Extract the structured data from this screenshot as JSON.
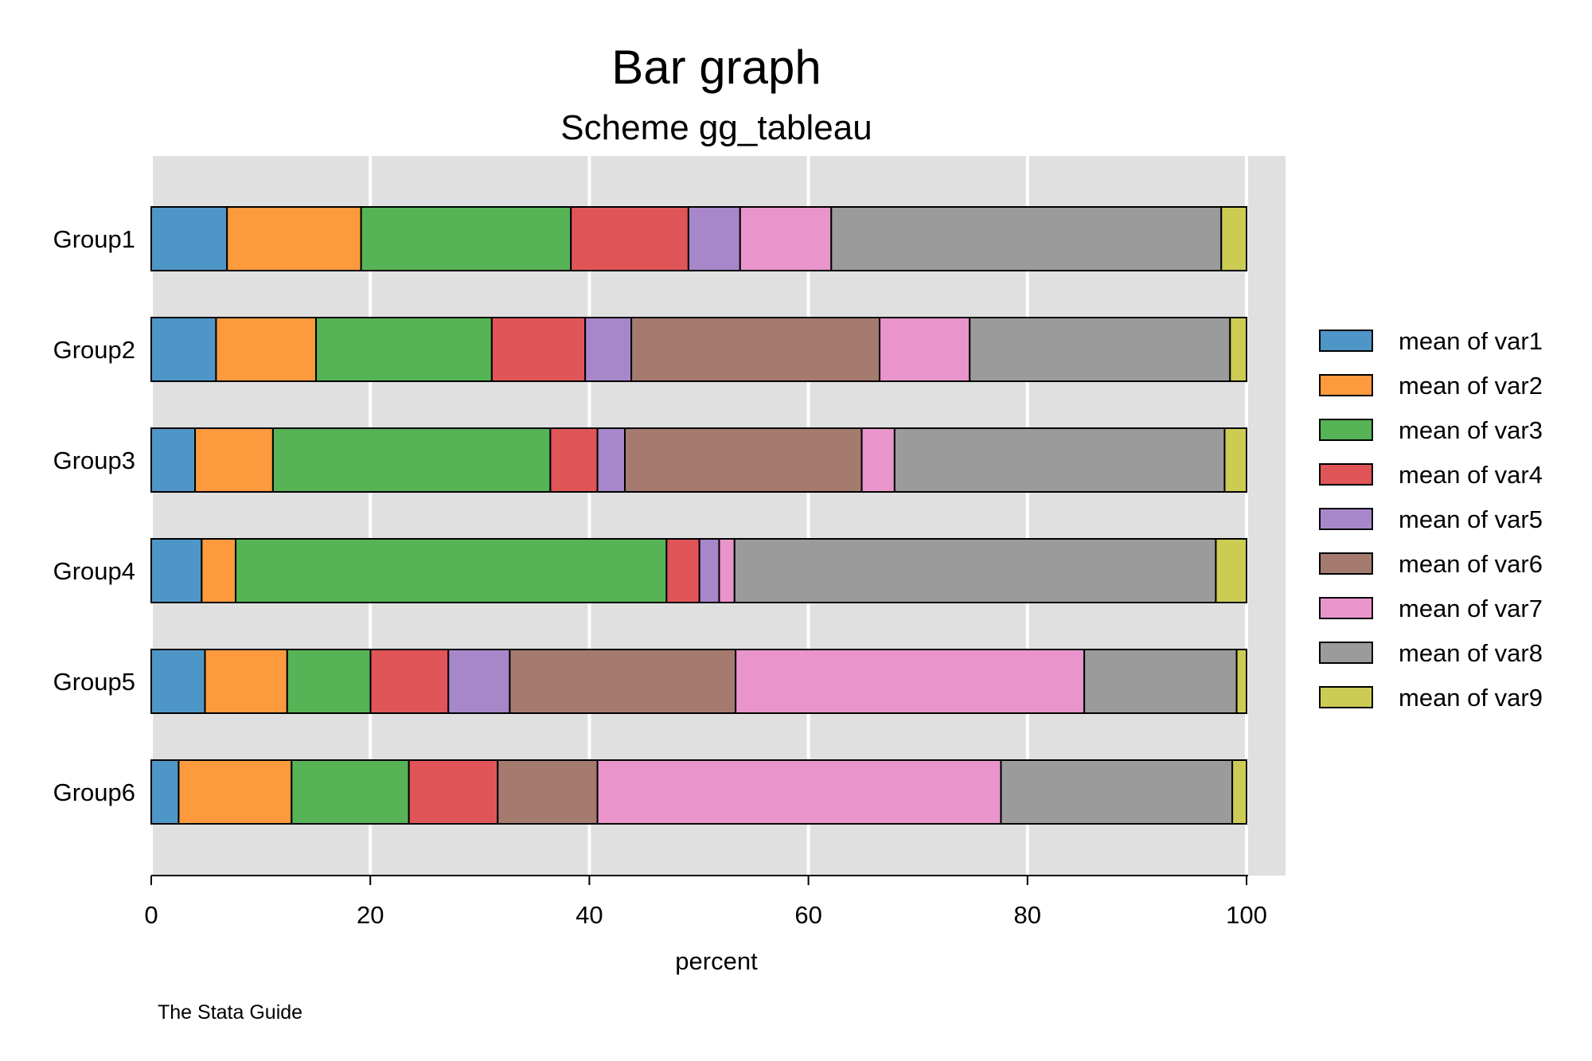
{
  "chart_data": {
    "type": "bar",
    "orientation": "horizontal",
    "stacked": true,
    "title": "Bar graph",
    "subtitle": "Scheme gg_tableau",
    "xlabel": "percent",
    "ylabel": "",
    "xlim": [
      0,
      100
    ],
    "xticks": [
      0,
      20,
      40,
      60,
      80,
      100
    ],
    "grid": true,
    "legend_position": "right",
    "note": "The Stata Guide",
    "categories": [
      "Group1",
      "Group2",
      "Group3",
      "Group4",
      "Group5",
      "Group6"
    ],
    "series": [
      {
        "name": "mean of var1",
        "color": "#4e96c8",
        "values": [
          6.9,
          5.9,
          4.0,
          4.6,
          4.9,
          2.5
        ]
      },
      {
        "name": "mean of var2",
        "color": "#fd9a3e",
        "values": [
          12.2,
          9.1,
          7.1,
          3.1,
          7.5,
          10.3
        ]
      },
      {
        "name": "mean of var3",
        "color": "#56b356",
        "values": [
          19.1,
          16.0,
          25.3,
          39.3,
          7.6,
          10.7
        ]
      },
      {
        "name": "mean of var4",
        "color": "#e05558",
        "values": [
          10.7,
          8.5,
          4.3,
          3.0,
          7.1,
          8.1
        ]
      },
      {
        "name": "mean of var5",
        "color": "#a886ca",
        "values": [
          4.7,
          4.2,
          2.5,
          1.8,
          5.6,
          0.0
        ]
      },
      {
        "name": "mean of var6",
        "color": "#a57b70",
        "values": [
          0.0,
          22.6,
          21.6,
          0.0,
          20.6,
          9.1
        ]
      },
      {
        "name": "mean of var7",
        "color": "#e994cb",
        "values": [
          8.3,
          8.2,
          3.0,
          1.4,
          31.8,
          36.8
        ]
      },
      {
        "name": "mean of var8",
        "color": "#9b9b9b",
        "values": [
          35.5,
          23.7,
          30.1,
          43.9,
          13.9,
          21.1
        ]
      },
      {
        "name": "mean of var9",
        "color": "#cccc55",
        "values": [
          2.3,
          1.5,
          2.0,
          2.8,
          0.9,
          1.3
        ]
      }
    ]
  }
}
